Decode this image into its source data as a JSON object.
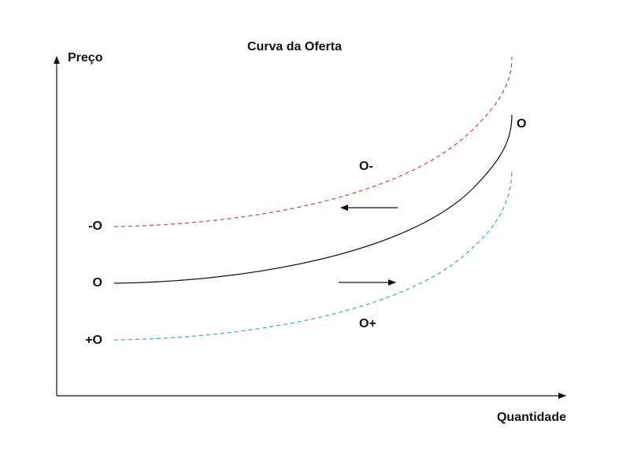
{
  "title": "Curva da Oferta",
  "axes": {
    "y_label": "Preço",
    "x_label": "Quantidade"
  },
  "curves": {
    "decreased": {
      "left_label": "-O",
      "mid_label": "O-",
      "color": "#cc4444",
      "style": "dashed"
    },
    "original": {
      "left_label": "O",
      "end_label": "O",
      "color": "#111111",
      "style": "solid"
    },
    "increased": {
      "left_label": "+O",
      "mid_label": "O+",
      "color": "#33aabb",
      "style": "dashed"
    }
  },
  "shifts": {
    "left_arrow_direction": "left",
    "right_arrow_direction": "right"
  }
}
